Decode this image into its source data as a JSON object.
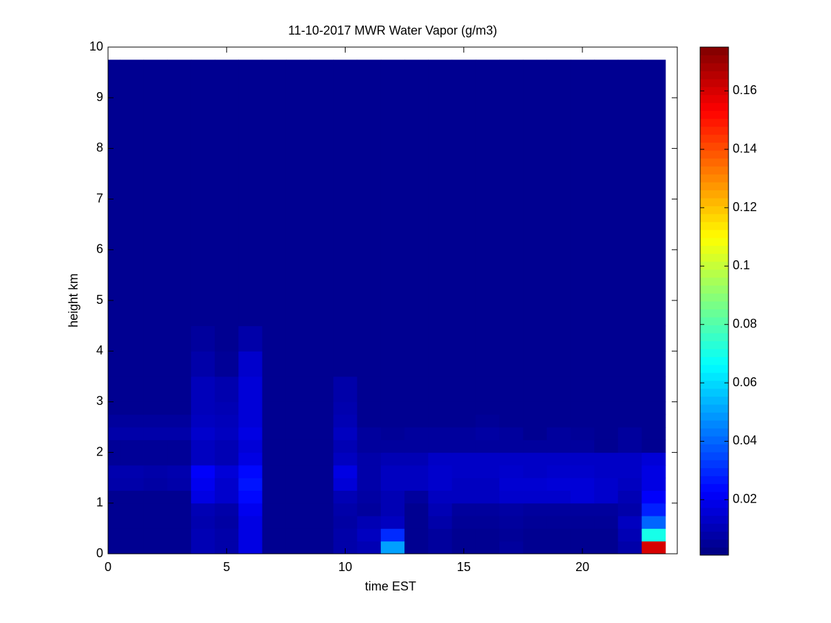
{
  "chart_data": {
    "type": "heatmap",
    "title": "11-10-2017 MWR Water Vapor (g/m3)",
    "x_label": "time EST",
    "y_label": "height km",
    "x": [
      0,
      1,
      2,
      3,
      4,
      5,
      6,
      7,
      8,
      9,
      10,
      11,
      12,
      13,
      14,
      15,
      16,
      17,
      18,
      19,
      20,
      21,
      22,
      23
    ],
    "y_edges": [
      0,
      0.25,
      0.5,
      0.75,
      1,
      1.25,
      1.5,
      1.75,
      2,
      2.25,
      2.5,
      2.75,
      3,
      3.5,
      4,
      4.5,
      9.75
    ],
    "z": [
      [
        0.004,
        0.004,
        0.004,
        0.004,
        0.01,
        0.008,
        0.018,
        0.004,
        0.004,
        0.004,
        0.008,
        0.01,
        0.05,
        0.004,
        0.006,
        0.004,
        0.004,
        0.006,
        0.004,
        0.004,
        0.004,
        0.004,
        0.008,
        0.16
      ],
      [
        0.004,
        0.004,
        0.004,
        0.004,
        0.01,
        0.008,
        0.018,
        0.004,
        0.004,
        0.004,
        0.008,
        0.012,
        0.03,
        0.004,
        0.006,
        0.004,
        0.004,
        0.005,
        0.004,
        0.004,
        0.004,
        0.004,
        0.01,
        0.07
      ],
      [
        0.004,
        0.004,
        0.004,
        0.004,
        0.009,
        0.007,
        0.018,
        0.004,
        0.004,
        0.004,
        0.007,
        0.01,
        0.012,
        0.004,
        0.008,
        0.005,
        0.005,
        0.006,
        0.005,
        0.005,
        0.005,
        0.005,
        0.012,
        0.04
      ],
      [
        0.004,
        0.004,
        0.004,
        0.004,
        0.01,
        0.008,
        0.02,
        0.004,
        0.004,
        0.004,
        0.008,
        0.006,
        0.01,
        0.004,
        0.01,
        0.006,
        0.006,
        0.007,
        0.006,
        0.006,
        0.006,
        0.006,
        0.008,
        0.028
      ],
      [
        0.004,
        0.004,
        0.004,
        0.004,
        0.018,
        0.014,
        0.024,
        0.004,
        0.004,
        0.004,
        0.01,
        0.007,
        0.01,
        0.006,
        0.012,
        0.012,
        0.012,
        0.014,
        0.014,
        0.014,
        0.016,
        0.014,
        0.01,
        0.022
      ],
      [
        0.008,
        0.008,
        0.007,
        0.008,
        0.02,
        0.014,
        0.026,
        0.004,
        0.004,
        0.004,
        0.016,
        0.008,
        0.012,
        0.012,
        0.014,
        0.012,
        0.012,
        0.015,
        0.015,
        0.016,
        0.016,
        0.014,
        0.012,
        0.018
      ],
      [
        0.009,
        0.009,
        0.008,
        0.009,
        0.022,
        0.016,
        0.024,
        0.004,
        0.004,
        0.004,
        0.018,
        0.008,
        0.012,
        0.012,
        0.014,
        0.013,
        0.013,
        0.014,
        0.013,
        0.014,
        0.014,
        0.013,
        0.013,
        0.018
      ],
      [
        0.005,
        0.005,
        0.005,
        0.005,
        0.012,
        0.01,
        0.018,
        0.004,
        0.004,
        0.004,
        0.012,
        0.008,
        0.01,
        0.01,
        0.013,
        0.013,
        0.013,
        0.013,
        0.013,
        0.013,
        0.013,
        0.013,
        0.013,
        0.016
      ],
      [
        0.005,
        0.005,
        0.005,
        0.005,
        0.012,
        0.01,
        0.016,
        0.004,
        0.004,
        0.004,
        0.01,
        0.006,
        0.006,
        0.006,
        0.006,
        0.006,
        0.006,
        0.006,
        0.006,
        0.006,
        0.006,
        0.004,
        0.006,
        0.004
      ],
      [
        0.008,
        0.008,
        0.008,
        0.008,
        0.014,
        0.012,
        0.018,
        0.004,
        0.004,
        0.004,
        0.012,
        0.006,
        0.005,
        0.006,
        0.006,
        0.006,
        0.007,
        0.006,
        0.004,
        0.006,
        0.005,
        0.004,
        0.006,
        0.004
      ],
      [
        0.006,
        0.006,
        0.006,
        0.006,
        0.012,
        0.011,
        0.016,
        0.004,
        0.004,
        0.004,
        0.01,
        0.004,
        0.004,
        0.004,
        0.004,
        0.004,
        0.005,
        0.004,
        0.004,
        0.004,
        0.004,
        0.004,
        0.004,
        0.004
      ],
      [
        0.004,
        0.004,
        0.004,
        0.004,
        0.011,
        0.01,
        0.016,
        0.004,
        0.004,
        0.004,
        0.009,
        0.004,
        0.004,
        0.004,
        0.004,
        0.004,
        0.004,
        0.004,
        0.004,
        0.004,
        0.004,
        0.004,
        0.004,
        0.004
      ],
      [
        0.004,
        0.004,
        0.004,
        0.004,
        0.011,
        0.009,
        0.016,
        0.004,
        0.004,
        0.004,
        0.008,
        0.004,
        0.004,
        0.004,
        0.004,
        0.004,
        0.004,
        0.004,
        0.004,
        0.004,
        0.004,
        0.004,
        0.004,
        0.004
      ],
      [
        0.004,
        0.004,
        0.004,
        0.004,
        0.008,
        0.005,
        0.014,
        0.004,
        0.004,
        0.004,
        0.004,
        0.004,
        0.004,
        0.004,
        0.004,
        0.004,
        0.004,
        0.004,
        0.004,
        0.004,
        0.004,
        0.004,
        0.004,
        0.004
      ],
      [
        0.004,
        0.004,
        0.004,
        0.004,
        0.006,
        0.004,
        0.008,
        0.004,
        0.004,
        0.004,
        0.004,
        0.004,
        0.004,
        0.004,
        0.004,
        0.004,
        0.004,
        0.004,
        0.004,
        0.004,
        0.004,
        0.004,
        0.004,
        0.004
      ],
      [
        0.004,
        0.004,
        0.004,
        0.004,
        0.004,
        0.004,
        0.004,
        0.004,
        0.004,
        0.004,
        0.004,
        0.004,
        0.004,
        0.004,
        0.004,
        0.004,
        0.004,
        0.004,
        0.004,
        0.004,
        0.004,
        0.004,
        0.004,
        0.004
      ]
    ],
    "colormap": "jet",
    "xlim": [
      0,
      24
    ],
    "xticks": [
      0,
      5,
      10,
      15,
      20
    ],
    "ylim": [
      0,
      10
    ],
    "yticks": [
      0,
      1,
      2,
      3,
      4,
      5,
      6,
      7,
      8,
      9,
      10
    ],
    "clim": [
      0.001,
      0.175
    ],
    "cticks": [
      0.02,
      0.04,
      0.06,
      0.08,
      0.1,
      0.12,
      0.14,
      0.16
    ]
  }
}
